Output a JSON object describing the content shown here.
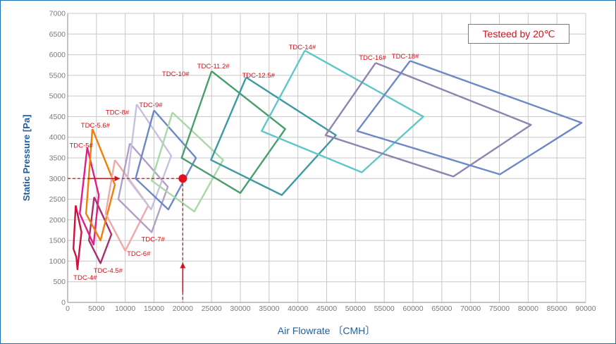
{
  "note": "Testeed by 20℃",
  "chart_data": {
    "type": "line",
    "title": "",
    "xlabel": "Air  Flowrate  〔CMH〕",
    "ylabel": "Static  Pressure  [Pa]",
    "xlim": [
      0,
      90000
    ],
    "ylim": [
      0,
      7000
    ],
    "x_ticks": [
      0,
      5000,
      10000,
      15000,
      20000,
      25000,
      30000,
      35000,
      40000,
      45000,
      50000,
      55000,
      60000,
      65000,
      70000,
      75000,
      80000,
      85000,
      90000
    ],
    "y_ticks": [
      0,
      500,
      1000,
      1500,
      2000,
      2500,
      3000,
      3500,
      4000,
      4500,
      5000,
      5500,
      6000,
      6500,
      7000
    ],
    "grid": true,
    "operating_point": {
      "x": 20000,
      "y": 3000
    },
    "series": [
      {
        "name": "TDC-4#",
        "color": "#d01040",
        "label_at": [
          1000,
          550
        ],
        "points": [
          [
            1400,
            2350
          ],
          [
            2400,
            1700
          ],
          [
            2000,
            1200
          ],
          [
            1700,
            800
          ],
          [
            1500,
            1100
          ],
          [
            1000,
            1300
          ],
          [
            1400,
            2350
          ]
        ]
      },
      {
        "name": "TDC-4.5#",
        "color": "#a8306a",
        "label_at": [
          4500,
          720
        ],
        "points": [
          [
            4600,
            2550
          ],
          [
            7600,
            1650
          ],
          [
            5700,
            950
          ],
          [
            3700,
            1500
          ],
          [
            4600,
            2550
          ]
        ]
      },
      {
        "name": "TDC-5#",
        "color": "#e0208a",
        "label_at": [
          300,
          3750
        ],
        "points": [
          [
            3400,
            3750
          ],
          [
            5400,
            2600
          ],
          [
            4500,
            1400
          ],
          [
            2100,
            2150
          ],
          [
            3400,
            3750
          ]
        ]
      },
      {
        "name": "TDC-5.6#",
        "color": "#f07f0a",
        "label_at": [
          2300,
          4230
        ],
        "points": [
          [
            4300,
            4200
          ],
          [
            8200,
            2850
          ],
          [
            5700,
            1500
          ],
          [
            3200,
            2150
          ],
          [
            4300,
            4200
          ]
        ]
      },
      {
        "name": "TDC-6#",
        "color": "#f0a8a8",
        "label_at": [
          10300,
          1130
        ],
        "points": [
          [
            8200,
            3450
          ],
          [
            14000,
            2350
          ],
          [
            10000,
            1250
          ],
          [
            6600,
            2150
          ],
          [
            8200,
            3450
          ]
        ]
      },
      {
        "name": "TDC-7#",
        "color": "#b0a0c8",
        "label_at": [
          12800,
          1480
        ],
        "points": [
          [
            10800,
            3850
          ],
          [
            17400,
            2800
          ],
          [
            14600,
            1700
          ],
          [
            8800,
            2500
          ],
          [
            10800,
            3850
          ]
        ]
      },
      {
        "name": "TDC-8#",
        "color": "#c8c0e0",
        "label_at": [
          6600,
          4550
        ],
        "points": [
          [
            12000,
            4800
          ],
          [
            18000,
            3550
          ],
          [
            14500,
            2250
          ],
          [
            10400,
            3000
          ],
          [
            12000,
            4800
          ]
        ]
      },
      {
        "name": "TDC-9#",
        "color": "#6d88c6",
        "label_at": [
          12400,
          4730
        ],
        "points": [
          [
            15000,
            4650
          ],
          [
            22300,
            3500
          ],
          [
            17500,
            2250
          ],
          [
            11800,
            3000
          ],
          [
            15000,
            4650
          ]
        ]
      },
      {
        "name": "TDC-10#",
        "color": "#a8d8a8",
        "label_at": [
          16400,
          5480
        ],
        "points": [
          [
            18200,
            4600
          ],
          [
            27000,
            3450
          ],
          [
            22000,
            2200
          ],
          [
            14600,
            2950
          ],
          [
            18200,
            4600
          ]
        ]
      },
      {
        "name": "TDC-11.2#",
        "color": "#4a9e6c",
        "label_at": [
          22500,
          5670
        ],
        "points": [
          [
            25000,
            5600
          ],
          [
            37800,
            4200
          ],
          [
            30000,
            2650
          ],
          [
            19800,
            3500
          ],
          [
            25000,
            5600
          ]
        ]
      },
      {
        "name": "TDC-12.5#",
        "color": "#3d9aa2",
        "label_at": [
          30300,
          5450
        ],
        "points": [
          [
            31000,
            5450
          ],
          [
            46600,
            4050
          ],
          [
            37200,
            2600
          ],
          [
            24900,
            3450
          ],
          [
            31000,
            5450
          ]
        ]
      },
      {
        "name": "TDC-14#",
        "color": "#5ec8c8",
        "label_at": [
          38400,
          6130
        ],
        "points": [
          [
            41200,
            6100
          ],
          [
            61800,
            4500
          ],
          [
            51100,
            3150
          ],
          [
            33700,
            4150
          ],
          [
            41200,
            6100
          ]
        ]
      },
      {
        "name": "TDC-16#",
        "color": "#8e84b0",
        "label_at": [
          50600,
          5870
        ],
        "points": [
          [
            53500,
            5800
          ],
          [
            80500,
            4300
          ],
          [
            67000,
            3050
          ],
          [
            44800,
            4050
          ],
          [
            53500,
            5800
          ]
        ]
      },
      {
        "name": "TDC-18#",
        "color": "#6d88c6",
        "label_at": [
          56300,
          5910
        ],
        "points": [
          [
            59500,
            5850
          ],
          [
            89300,
            4350
          ],
          [
            75100,
            3100
          ],
          [
            50300,
            4150
          ],
          [
            59500,
            5850
          ]
        ]
      }
    ]
  }
}
